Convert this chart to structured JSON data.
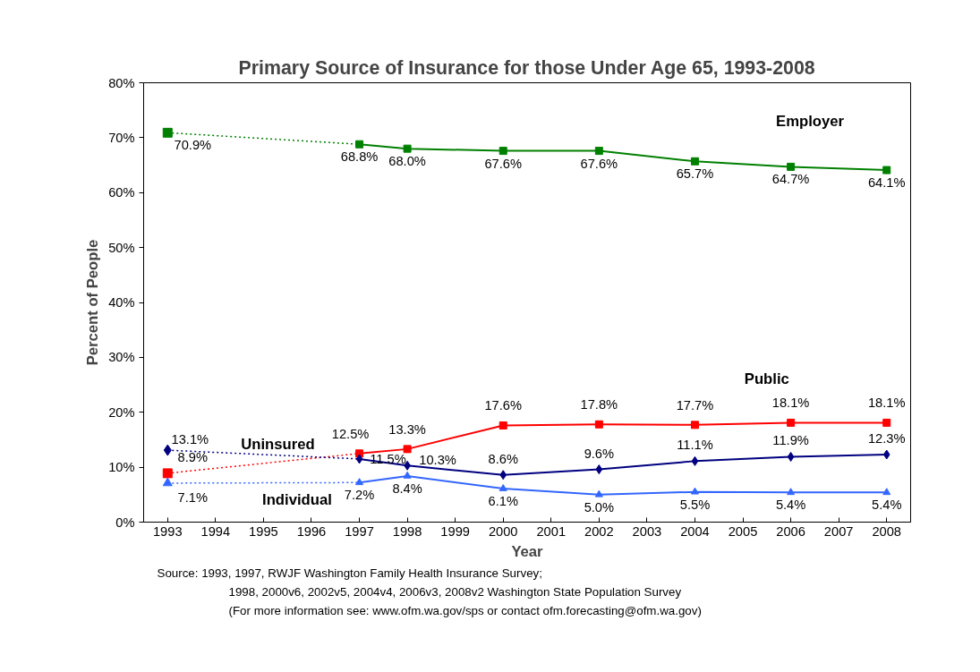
{
  "chart_data": {
    "type": "line",
    "title": "Primary Source of Insurance for those Under Age 65, 1993-2008",
    "xlabel": "Year",
    "ylabel": "Percent of People",
    "xlim": [
      1992.5,
      2008.5
    ],
    "xticks": [
      1993,
      1994,
      1995,
      1996,
      1997,
      1998,
      1999,
      2000,
      2001,
      2002,
      2003,
      2004,
      2005,
      2006,
      2007,
      2008
    ],
    "ylim": [
      0,
      80
    ],
    "yticks": [
      {
        "value": 0,
        "label": "0%"
      },
      {
        "value": 10,
        "label": "10%"
      },
      {
        "value": 20,
        "label": "20%"
      },
      {
        "value": 30,
        "label": "30%"
      },
      {
        "value": 40,
        "label": "40%"
      },
      {
        "value": 50,
        "label": "50%"
      },
      {
        "value": 60,
        "label": "60%"
      },
      {
        "value": 70,
        "label": "70%"
      },
      {
        "value": 80,
        "label": "80%"
      }
    ],
    "grid": false,
    "legend": false,
    "series": [
      {
        "name": "Employer",
        "color": "#008000",
        "marker": "square",
        "line_style": "solid",
        "x": [
          1997,
          1998,
          2000,
          2002,
          2004,
          2006,
          2008
        ],
        "values": [
          68.8,
          68.0,
          67.6,
          67.6,
          65.7,
          64.7,
          64.1
        ],
        "value_labels": [
          "68.8%",
          "68.0%",
          "67.6%",
          "67.6%",
          "65.7%",
          "64.7%",
          "64.1%"
        ]
      },
      {
        "color": "#008000",
        "marker": "none",
        "line_style": "dotted",
        "x": [
          1993,
          1997
        ],
        "values": [
          70.9,
          68.8
        ]
      },
      {
        "type": "scatter",
        "color": "#008000",
        "marker": "square",
        "x": [
          1993
        ],
        "values": [
          70.9
        ],
        "value_labels": [
          "70.9%"
        ]
      },
      {
        "name": "Public",
        "color": "#ff0000",
        "marker": "square",
        "line_style": "solid",
        "x": [
          1997,
          1998,
          2000,
          2002,
          2004,
          2006,
          2008
        ],
        "values": [
          12.5,
          13.3,
          17.6,
          17.8,
          17.7,
          18.1,
          18.1
        ],
        "value_labels": [
          "12.5%",
          "13.3%",
          "17.6%",
          "17.8%",
          "17.7%",
          "18.1%",
          "18.1%"
        ]
      },
      {
        "color": "#ff0000",
        "marker": "none",
        "line_style": "dotted",
        "x": [
          1993,
          1997
        ],
        "values": [
          8.9,
          12.5
        ]
      },
      {
        "type": "scatter",
        "color": "#ff0000",
        "marker": "square",
        "x": [
          1993
        ],
        "values": [
          8.9
        ],
        "value_labels": [
          "8.9%"
        ]
      },
      {
        "name": "Uninsured",
        "color": "#000080",
        "marker": "diamond",
        "line_style": "solid",
        "x": [
          1997,
          1998,
          2000,
          2002,
          2004,
          2006,
          2008
        ],
        "values": [
          11.5,
          10.3,
          8.6,
          9.6,
          11.1,
          11.9,
          12.3
        ],
        "value_labels": [
          "11.5%",
          "10.3%",
          "8.6%",
          "9.6%",
          "11.1%",
          "11.9%",
          "12.3%"
        ]
      },
      {
        "color": "#000080",
        "marker": "none",
        "line_style": "dotted",
        "x": [
          1993,
          1997
        ],
        "values": [
          13.1,
          11.5
        ]
      },
      {
        "type": "scatter",
        "color": "#000080",
        "marker": "diamond",
        "x": [
          1993
        ],
        "values": [
          13.1
        ],
        "value_labels": [
          "13.1%"
        ]
      },
      {
        "name": "Individual",
        "color": "#3366ff",
        "marker": "triangle",
        "line_style": "solid",
        "x": [
          1997,
          1998,
          2000,
          2002,
          2004,
          2006,
          2008
        ],
        "values": [
          7.2,
          8.4,
          6.1,
          5.0,
          5.5,
          5.4,
          5.4
        ],
        "value_labels": [
          "7.2%",
          "8.4%",
          "6.1%",
          "5.0%",
          "5.5%",
          "5.4%",
          "5.4%"
        ]
      },
      {
        "color": "#3366ff",
        "marker": "none",
        "line_style": "dotted",
        "x": [
          1993,
          1997
        ],
        "values": [
          7.1,
          7.2
        ]
      },
      {
        "type": "scatter",
        "color": "#3366ff",
        "marker": "triangle",
        "x": [
          1993
        ],
        "values": [
          7.1
        ],
        "value_labels": [
          "7.1%"
        ]
      }
    ],
    "annotations": [
      "Source:  1993, 1997, RWJF Washington Family Health Insurance Survey;",
      "1998, 2000v6, 2002v5, 2004v4, 2006v3, 2008v2 Washington State Population Survey",
      "(For more information see: www.ofm.wa.gov/sps or contact ofm.forecasting@ofm.wa.gov)"
    ]
  }
}
